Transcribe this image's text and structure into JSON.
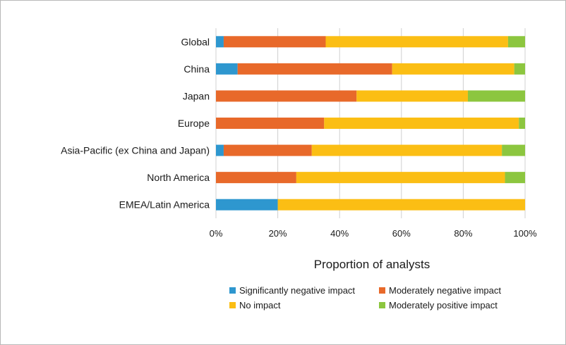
{
  "chart_data": {
    "type": "bar",
    "orientation": "horizontal",
    "stacked": true,
    "categories": [
      "Global",
      "China",
      "Japan",
      "Europe",
      "Asia-Pacific (ex China and Japan)",
      "North America",
      "EMEA/Latin America"
    ],
    "series": [
      {
        "name": "Significantly negative impact",
        "color": "#2e97cf",
        "values": [
          2.5,
          7,
          0,
          0,
          2.5,
          0,
          20
        ]
      },
      {
        "name": "Moderately negative impact",
        "color": "#e8692a",
        "values": [
          33,
          50,
          45.5,
          35,
          28.5,
          26,
          0
        ]
      },
      {
        "name": "No impact",
        "color": "#fbbe14",
        "values": [
          59,
          39.5,
          36,
          63,
          61.5,
          67.5,
          80
        ]
      },
      {
        "name": "Moderately positive impact",
        "color": "#8cc63f",
        "values": [
          5.5,
          3.5,
          18.5,
          2,
          7.5,
          6.5,
          0
        ]
      }
    ],
    "xlabel": "Proportion of analysts",
    "xlim": [
      0,
      100
    ],
    "x_ticks": [
      "0%",
      "20%",
      "40%",
      "60%",
      "80%",
      "100%"
    ],
    "grid": "vertical",
    "legend_position": "bottom"
  }
}
